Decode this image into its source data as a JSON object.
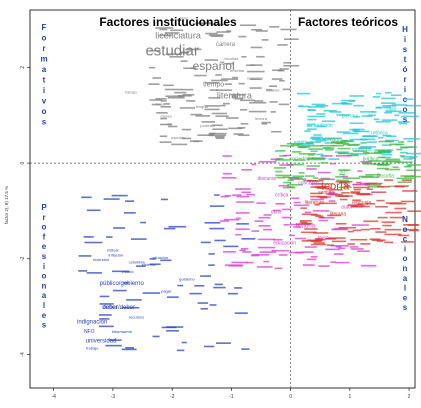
{
  "chart_data": {
    "type": "scatter",
    "xlim": [
      -4.4,
      2.1
    ],
    "ylim": [
      -4.7,
      3.2
    ],
    "x_ticks": [
      -4,
      -3,
      -2,
      -1,
      0,
      1,
      2
    ],
    "y_ticks": [
      -4,
      -2,
      0,
      2
    ],
    "ylabel": "factor 2(, 8)  17.5 %",
    "reference_lines": {
      "x": 0,
      "y": 0
    },
    "grid": false,
    "quadrant_titles": {
      "top_left": "Factores institucionales",
      "top_right": "Factores teóricos"
    },
    "side_labels": {
      "left_top": "Formativos",
      "left_bottom": "Profesionales",
      "right_top": "Históricos",
      "right_bottom": "Nocionales"
    },
    "colors": {
      "institucional": "#7f7f7f",
      "profesional": "#2742c4",
      "teorico_magenta": "#d63bd6",
      "teorico_cyan": "#22c6d6",
      "teorico_green": "#3fb83f",
      "teorico_red": "#d9362c",
      "side_label": "#1f3fb5"
    },
    "points": [
      {
        "label": "estudiar",
        "x": -2.0,
        "y": 2.25,
        "group": "institucional",
        "size": 15
      },
      {
        "label": "español",
        "x": -1.3,
        "y": 1.95,
        "group": "institucional",
        "size": 12
      },
      {
        "label": "licenciatura",
        "x": -1.9,
        "y": 2.6,
        "group": "institucional",
        "size": 9
      },
      {
        "label": "literatura",
        "x": -0.95,
        "y": 1.35,
        "group": "institucional",
        "size": 9
      },
      {
        "label": "tiempo",
        "x": -1.3,
        "y": 1.6,
        "group": "institucional",
        "size": 7
      },
      {
        "label": "carrera",
        "x": -1.1,
        "y": 2.45,
        "group": "institucional",
        "size": 6
      },
      {
        "label": "estudiante",
        "x": -1.5,
        "y": 2.9,
        "group": "institucional",
        "size": 4
      },
      {
        "label": "título",
        "x": -1.8,
        "y": 3.0,
        "group": "institucional",
        "size": 4
      },
      {
        "label": "facultad",
        "x": -1.0,
        "y": 2.15,
        "group": "institucional",
        "size": 4
      },
      {
        "label": "trabajo",
        "x": -2.7,
        "y": 1.45,
        "group": "institucional",
        "size": 4
      },
      {
        "label": "beca",
        "x": -2.2,
        "y": 1.2,
        "group": "institucional",
        "size": 4
      },
      {
        "label": "profesor",
        "x": -1.4,
        "y": 0.75,
        "group": "institucional",
        "size": 4
      },
      {
        "label": "lectura",
        "x": -0.5,
        "y": 0.9,
        "group": "institucional",
        "size": 4
      },
      {
        "label": "escuela",
        "x": -1.9,
        "y": 0.5,
        "group": "institucional",
        "size": 4
      },
      {
        "label": "maestría",
        "x": -0.6,
        "y": 1.75,
        "group": "institucional",
        "size": 4
      },
      {
        "label": "clases",
        "x": -2.1,
        "y": 0.95,
        "group": "institucional",
        "size": 4
      },
      {
        "label": "enseñar",
        "x": -0.9,
        "y": 1.9,
        "group": "institucional",
        "size": 4
      },
      {
        "label": "lengua",
        "x": -1.5,
        "y": 1.15,
        "group": "institucional",
        "size": 4
      },
      {
        "label": "materia",
        "x": -0.3,
        "y": 1.5,
        "group": "institucional",
        "size": 4
      },
      {
        "label": "universidad",
        "x": -3.2,
        "y": -3.75,
        "group": "profesional",
        "size": 6
      },
      {
        "label": "indignación",
        "x": -3.35,
        "y": -3.35,
        "group": "profesional",
        "size": 6
      },
      {
        "label": "deber",
        "x": -3.05,
        "y": -3.05,
        "group": "profesional",
        "size": 6
      },
      {
        "label": "deber/deber",
        "x": -2.9,
        "y": -3.05,
        "group": "profesional",
        "size": 6
      },
      {
        "label": "público/gobierno",
        "x": -2.85,
        "y": -2.55,
        "group": "profesional",
        "size": 6
      },
      {
        "label": "NFO",
        "x": -3.4,
        "y": -3.55,
        "group": "profesional",
        "size": 5
      },
      {
        "label": "trabajo",
        "x": -3.35,
        "y": -3.9,
        "group": "profesional",
        "size": 4
      },
      {
        "label": "estado",
        "x": -2.75,
        "y": -2.3,
        "group": "profesional",
        "size": 4
      },
      {
        "label": "inflación",
        "x": -2.95,
        "y": -1.95,
        "group": "profesional",
        "size": 4
      },
      {
        "label": "situación",
        "x": -2.2,
        "y": -2.0,
        "group": "profesional",
        "size": 4
      },
      {
        "label": "indicar",
        "x": -3.0,
        "y": -1.85,
        "group": "profesional",
        "size": 4
      },
      {
        "label": "sistema",
        "x": -2.4,
        "y": -2.15,
        "group": "profesional",
        "size": 4
      },
      {
        "label": "colombia",
        "x": -2.6,
        "y": -2.1,
        "group": "profesional",
        "size": 4
      },
      {
        "label": "pagar",
        "x": -2.1,
        "y": -2.7,
        "group": "profesional",
        "size": 4
      },
      {
        "label": "recursos",
        "x": -2.6,
        "y": -3.25,
        "group": "profesional",
        "size": 4
      },
      {
        "label": "informarme",
        "x": -2.85,
        "y": -3.55,
        "group": "profesional",
        "size": 4
      },
      {
        "label": "gobierno",
        "x": -1.75,
        "y": -2.45,
        "group": "profesional",
        "size": 4
      },
      {
        "label": "inversión",
        "x": -3.2,
        "y": -2.05,
        "group": "profesional",
        "size": 4
      },
      {
        "label": "teoría",
        "x": 0.75,
        "y": -0.55,
        "group": "teorico_red",
        "size": 11
      },
      {
        "label": "literatura",
        "x": 0.4,
        "y": -0.85,
        "group": "teorico_red",
        "size": 5
      },
      {
        "label": "literaria",
        "x": 0.8,
        "y": -1.1,
        "group": "teorico_red",
        "size": 5
      },
      {
        "label": "lenguaje",
        "x": 1.2,
        "y": -0.85,
        "group": "teorico_red",
        "size": 5
      },
      {
        "label": "sentido",
        "x": 0.6,
        "y": -0.65,
        "group": "teorico_red",
        "size": 5
      },
      {
        "label": "concepto",
        "x": 0.3,
        "y": -0.45,
        "group": "teorico_magenta",
        "size": 5
      },
      {
        "label": "historia",
        "x": 0.25,
        "y": -1.35,
        "group": "teorico_magenta",
        "size": 6
      },
      {
        "label": "crítica",
        "x": -0.15,
        "y": -0.7,
        "group": "teorico_magenta",
        "size": 5
      },
      {
        "label": "autor",
        "x": 0.95,
        "y": -0.95,
        "group": "teorico_magenta",
        "size": 5
      },
      {
        "label": "obra",
        "x": -0.25,
        "y": -1.05,
        "group": "teorico_magenta",
        "size": 5
      },
      {
        "label": "texto",
        "x": 0.55,
        "y": -1.6,
        "group": "teorico_magenta",
        "size": 5
      },
      {
        "label": "discurso",
        "x": -0.4,
        "y": -0.35,
        "group": "teorico_magenta",
        "size": 5
      },
      {
        "label": "educación",
        "x": -0.1,
        "y": -1.7,
        "group": "teorico_magenta",
        "size": 5
      },
      {
        "label": "tradición",
        "x": 0.55,
        "y": 0.75,
        "group": "teorico_cyan",
        "size": 5
      },
      {
        "label": "poética",
        "x": 1.0,
        "y": 0.95,
        "group": "teorico_cyan",
        "size": 5
      },
      {
        "label": "retórica",
        "x": 1.5,
        "y": 0.6,
        "group": "teorico_cyan",
        "size": 5
      },
      {
        "label": "estética",
        "x": 0.2,
        "y": 0.4,
        "group": "teorico_cyan",
        "size": 5
      },
      {
        "label": "moderna",
        "x": 1.2,
        "y": 0.25,
        "group": "teorico_cyan",
        "size": 5
      },
      {
        "label": "siglo",
        "x": 1.7,
        "y": 1.1,
        "group": "teorico_cyan",
        "size": 5
      },
      {
        "label": "cultura",
        "x": 0.75,
        "y": 0.45,
        "group": "teorico_green",
        "size": 5
      },
      {
        "label": "política",
        "x": 1.35,
        "y": 0.05,
        "group": "teorico_green",
        "size": 5
      },
      {
        "label": "sociedad",
        "x": 0.15,
        "y": 0.05,
        "group": "teorico_green",
        "size": 5
      },
      {
        "label": "filosofía",
        "x": 1.6,
        "y": -0.3,
        "group": "teorico_green",
        "size": 5
      },
      {
        "label": "arte",
        "x": 0.9,
        "y": -0.2,
        "group": "teorico_green",
        "size": 5
      }
    ]
  }
}
